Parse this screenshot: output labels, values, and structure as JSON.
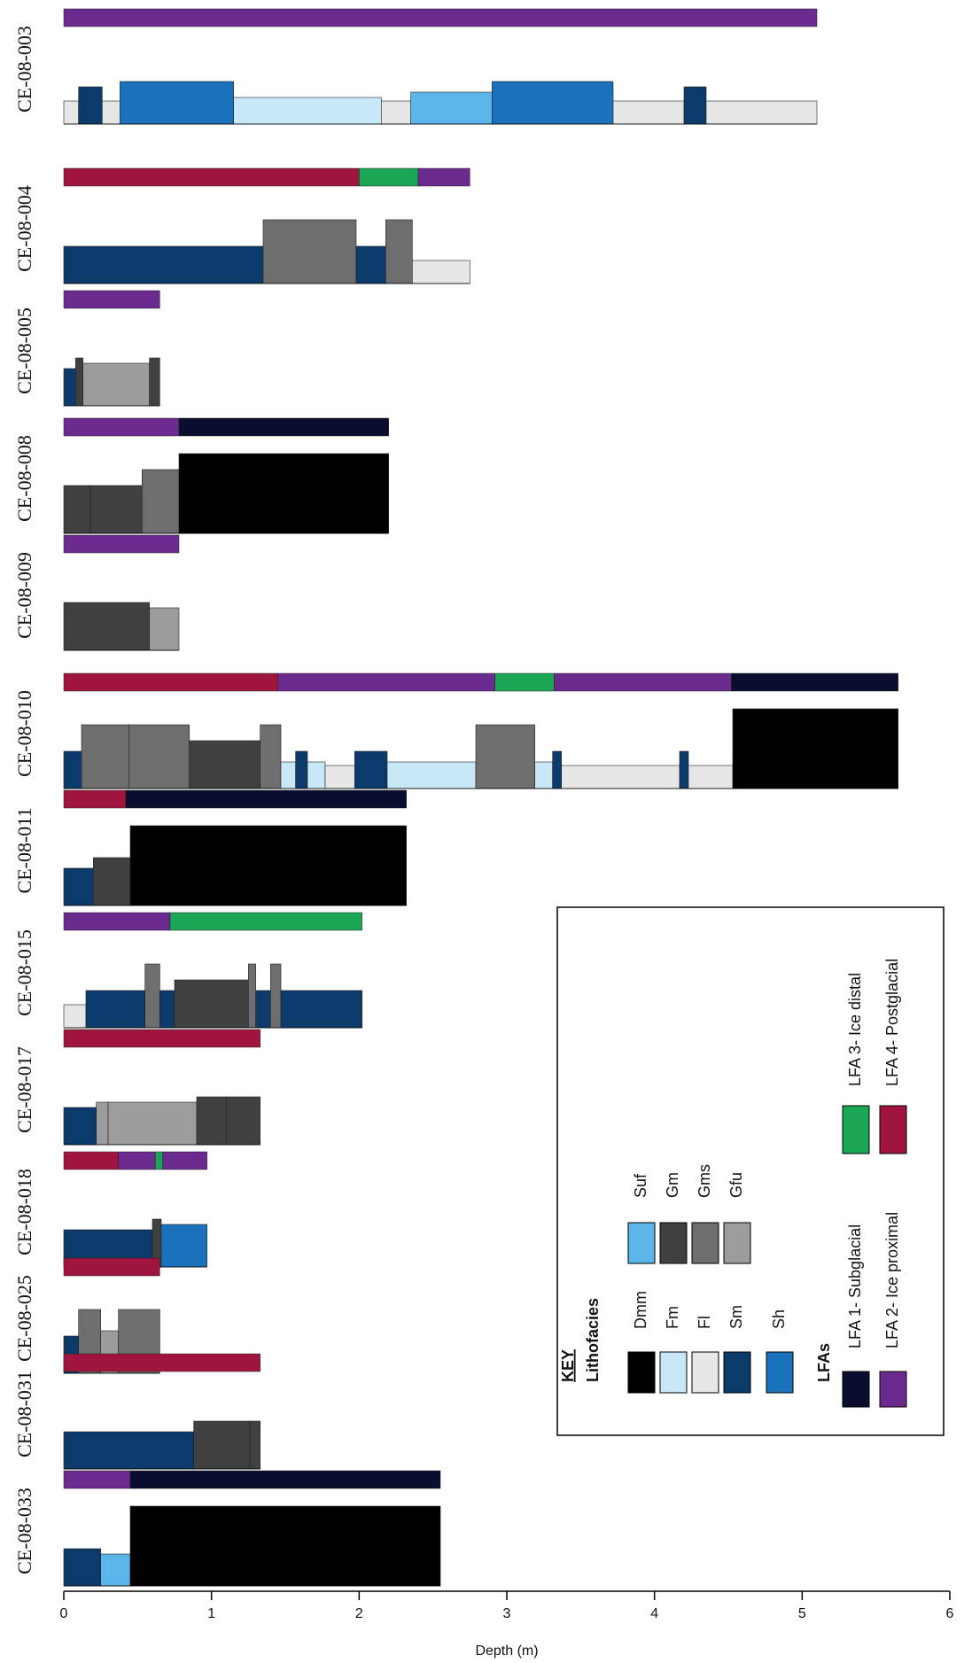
{
  "chart_data": {
    "type": "bar",
    "xlabel": "Depth (m)",
    "xlim": [
      0,
      6
    ],
    "xticks": [
      0,
      1,
      2,
      3,
      4,
      5,
      6
    ],
    "key": {
      "title": "KEY",
      "lithofacies_title": "Lithofacies",
      "lfa_title": "LFAs"
    },
    "lithofacies": [
      {
        "name": "Dmm",
        "color": "#000000"
      },
      {
        "name": "Fm",
        "color": "#c8e7f7"
      },
      {
        "name": "Fl",
        "color": "#e6e6e6"
      },
      {
        "name": "Sm",
        "color": "#0c3a6b"
      },
      {
        "name": "Sh",
        "color": "#1b72ba"
      },
      {
        "name": "Suf",
        "color": "#5cb5e8"
      },
      {
        "name": "Gm",
        "color": "#404040"
      },
      {
        "name": "Gms",
        "color": "#6e6e6e"
      },
      {
        "name": "Gfu",
        "color": "#9c9c9c"
      }
    ],
    "lfas": [
      {
        "name": "LFA 1- Subglacial",
        "color": "#0b0d2e"
      },
      {
        "name": "LFA 2- Ice proximal",
        "color": "#6b2a8e"
      },
      {
        "name": "LFA 3- Ice distal",
        "color": "#1aa655"
      },
      {
        "name": "LFA 4- Postglacial",
        "color": "#a0153e"
      }
    ],
    "cores": [
      {
        "name": "CE-08-003",
        "lfa": [
          {
            "k": 1,
            "t": 5.1
          }
        ],
        "litho": [
          {
            "k": 2,
            "t": 0.1
          },
          {
            "k": 3,
            "t": 0.16
          },
          {
            "k": 2,
            "t": 0.12
          },
          {
            "k": 4,
            "t": 0.77
          },
          {
            "k": 1,
            "t": 1.0
          },
          {
            "k": 2,
            "t": 0.2
          },
          {
            "k": 5,
            "t": 0.55
          },
          {
            "k": 4,
            "t": 0.82
          },
          {
            "k": 2,
            "t": 0.48
          },
          {
            "k": 3,
            "t": 0.15
          },
          {
            "k": 2,
            "t": 0.75
          }
        ]
      },
      {
        "name": "CE-08-004",
        "lfa": [
          {
            "k": 3,
            "t": 2.0
          },
          {
            "k": 2,
            "t": 0.4
          },
          {
            "k": 1,
            "t": 0.35
          }
        ],
        "litho": [
          {
            "k": 3,
            "t": 1.35
          },
          {
            "k": 7,
            "t": 0.63
          },
          {
            "k": 3,
            "t": 0.2
          },
          {
            "k": 7,
            "t": 0.18
          },
          {
            "k": 2,
            "t": 0.39
          }
        ]
      },
      {
        "name": "CE-08-005",
        "lfa": [
          {
            "k": 1,
            "t": 0.65
          }
        ],
        "litho": [
          {
            "k": 3,
            "t": 0.08
          },
          {
            "k": 6,
            "t": 0.05
          },
          {
            "k": 8,
            "t": 0.45
          },
          {
            "k": 6,
            "t": 0.07
          }
        ]
      },
      {
        "name": "CE-08-008",
        "lfa": [
          {
            "k": 1,
            "t": 0.78
          },
          {
            "k": 0,
            "t": 1.42
          }
        ],
        "litho": [
          {
            "k": 6,
            "t": 0.18
          },
          {
            "k": 6,
            "t": 0.35
          },
          {
            "k": 7,
            "t": 0.25
          },
          {
            "k": 0,
            "t": 1.42
          }
        ]
      },
      {
        "name": "CE-08-009",
        "lfa": [
          {
            "k": 1,
            "t": 0.78
          }
        ],
        "litho": [
          {
            "k": 6,
            "t": 0.58
          },
          {
            "k": 8,
            "t": 0.2
          }
        ]
      },
      {
        "name": "CE-08-010",
        "lfa": [
          {
            "k": 3,
            "t": 1.45
          },
          {
            "k": 1,
            "t": 1.47
          },
          {
            "k": 2,
            "t": 0.4
          },
          {
            "k": 1,
            "t": 1.2
          },
          {
            "k": 0,
            "t": 1.13
          }
        ],
        "litho": [
          {
            "k": 3,
            "t": 0.12
          },
          {
            "k": 7,
            "t": 0.32
          },
          {
            "k": 7,
            "t": 0.41
          },
          {
            "k": 6,
            "t": 0.48
          },
          {
            "k": 7,
            "t": 0.14
          },
          {
            "k": 1,
            "t": 0.1
          },
          {
            "k": 3,
            "t": 0.08
          },
          {
            "k": 1,
            "t": 0.12
          },
          {
            "k": 2,
            "t": 0.2
          },
          {
            "k": 3,
            "t": 0.22
          },
          {
            "k": 1,
            "t": 0.6
          },
          {
            "k": 7,
            "t": 0.4
          },
          {
            "k": 1,
            "t": 0.12
          },
          {
            "k": 3,
            "t": 0.06
          },
          {
            "k": 2,
            "t": 0.8
          },
          {
            "k": 3,
            "t": 0.06
          },
          {
            "k": 2,
            "t": 0.3
          },
          {
            "k": 0,
            "t": 1.12
          }
        ]
      },
      {
        "name": "CE-08-011",
        "lfa": [
          {
            "k": 3,
            "t": 0.42
          },
          {
            "k": 0,
            "t": 1.9
          }
        ],
        "litho": [
          {
            "k": 3,
            "t": 0.2
          },
          {
            "k": 6,
            "t": 0.25
          },
          {
            "k": 0,
            "t": 1.87
          }
        ]
      },
      {
        "name": "CE-08-015",
        "lfa": [
          {
            "k": 1,
            "t": 0.72
          },
          {
            "k": 2,
            "t": 1.3
          }
        ],
        "litho": [
          {
            "k": 2,
            "t": 0.15
          },
          {
            "k": 3,
            "t": 0.4
          },
          {
            "k": 7,
            "t": 0.1
          },
          {
            "k": 3,
            "t": 0.1
          },
          {
            "k": 6,
            "t": 0.5
          },
          {
            "k": 7,
            "t": 0.05
          },
          {
            "k": 3,
            "t": 0.1
          },
          {
            "k": 7,
            "t": 0.07
          },
          {
            "k": 3,
            "t": 0.55
          }
        ]
      },
      {
        "name": "CE-08-017",
        "lfa": [
          {
            "k": 3,
            "t": 1.33
          }
        ],
        "litho": [
          {
            "k": 3,
            "t": 0.22
          },
          {
            "k": 8,
            "t": 0.08
          },
          {
            "k": 8,
            "t": 0.6
          },
          {
            "k": 6,
            "t": 0.2
          },
          {
            "k": 6,
            "t": 0.23
          }
        ]
      },
      {
        "name": "CE-08-018",
        "lfa": [
          {
            "k": 3,
            "t": 0.37
          },
          {
            "k": 1,
            "t": 0.25
          },
          {
            "k": 2,
            "t": 0.05
          },
          {
            "k": 1,
            "t": 0.3
          }
        ],
        "litho": [
          {
            "k": 3,
            "t": 0.6
          },
          {
            "k": 6,
            "t": 0.06
          },
          {
            "k": 4,
            "t": 0.31
          }
        ]
      },
      {
        "name": "CE-08-025",
        "lfa": [
          {
            "k": 3,
            "t": 0.65
          }
        ],
        "litho": [
          {
            "k": 3,
            "t": 0.1
          },
          {
            "k": 7,
            "t": 0.15
          },
          {
            "k": 8,
            "t": 0.12
          },
          {
            "k": 7,
            "t": 0.28
          }
        ]
      },
      {
        "name": "CE-08-031",
        "lfa": [
          {
            "k": 3,
            "t": 1.33
          }
        ],
        "litho": [
          {
            "k": 3,
            "t": 0.88
          },
          {
            "k": 6,
            "t": 0.38
          },
          {
            "k": 6,
            "t": 0.07
          }
        ]
      },
      {
        "name": "CE-08-033",
        "lfa": [
          {
            "k": 1,
            "t": 0.45
          },
          {
            "k": 0,
            "t": 2.1
          }
        ],
        "litho": [
          {
            "k": 3,
            "t": 0.25
          },
          {
            "k": 5,
            "t": 0.2
          },
          {
            "k": 0,
            "t": 2.1
          }
        ]
      }
    ]
  }
}
